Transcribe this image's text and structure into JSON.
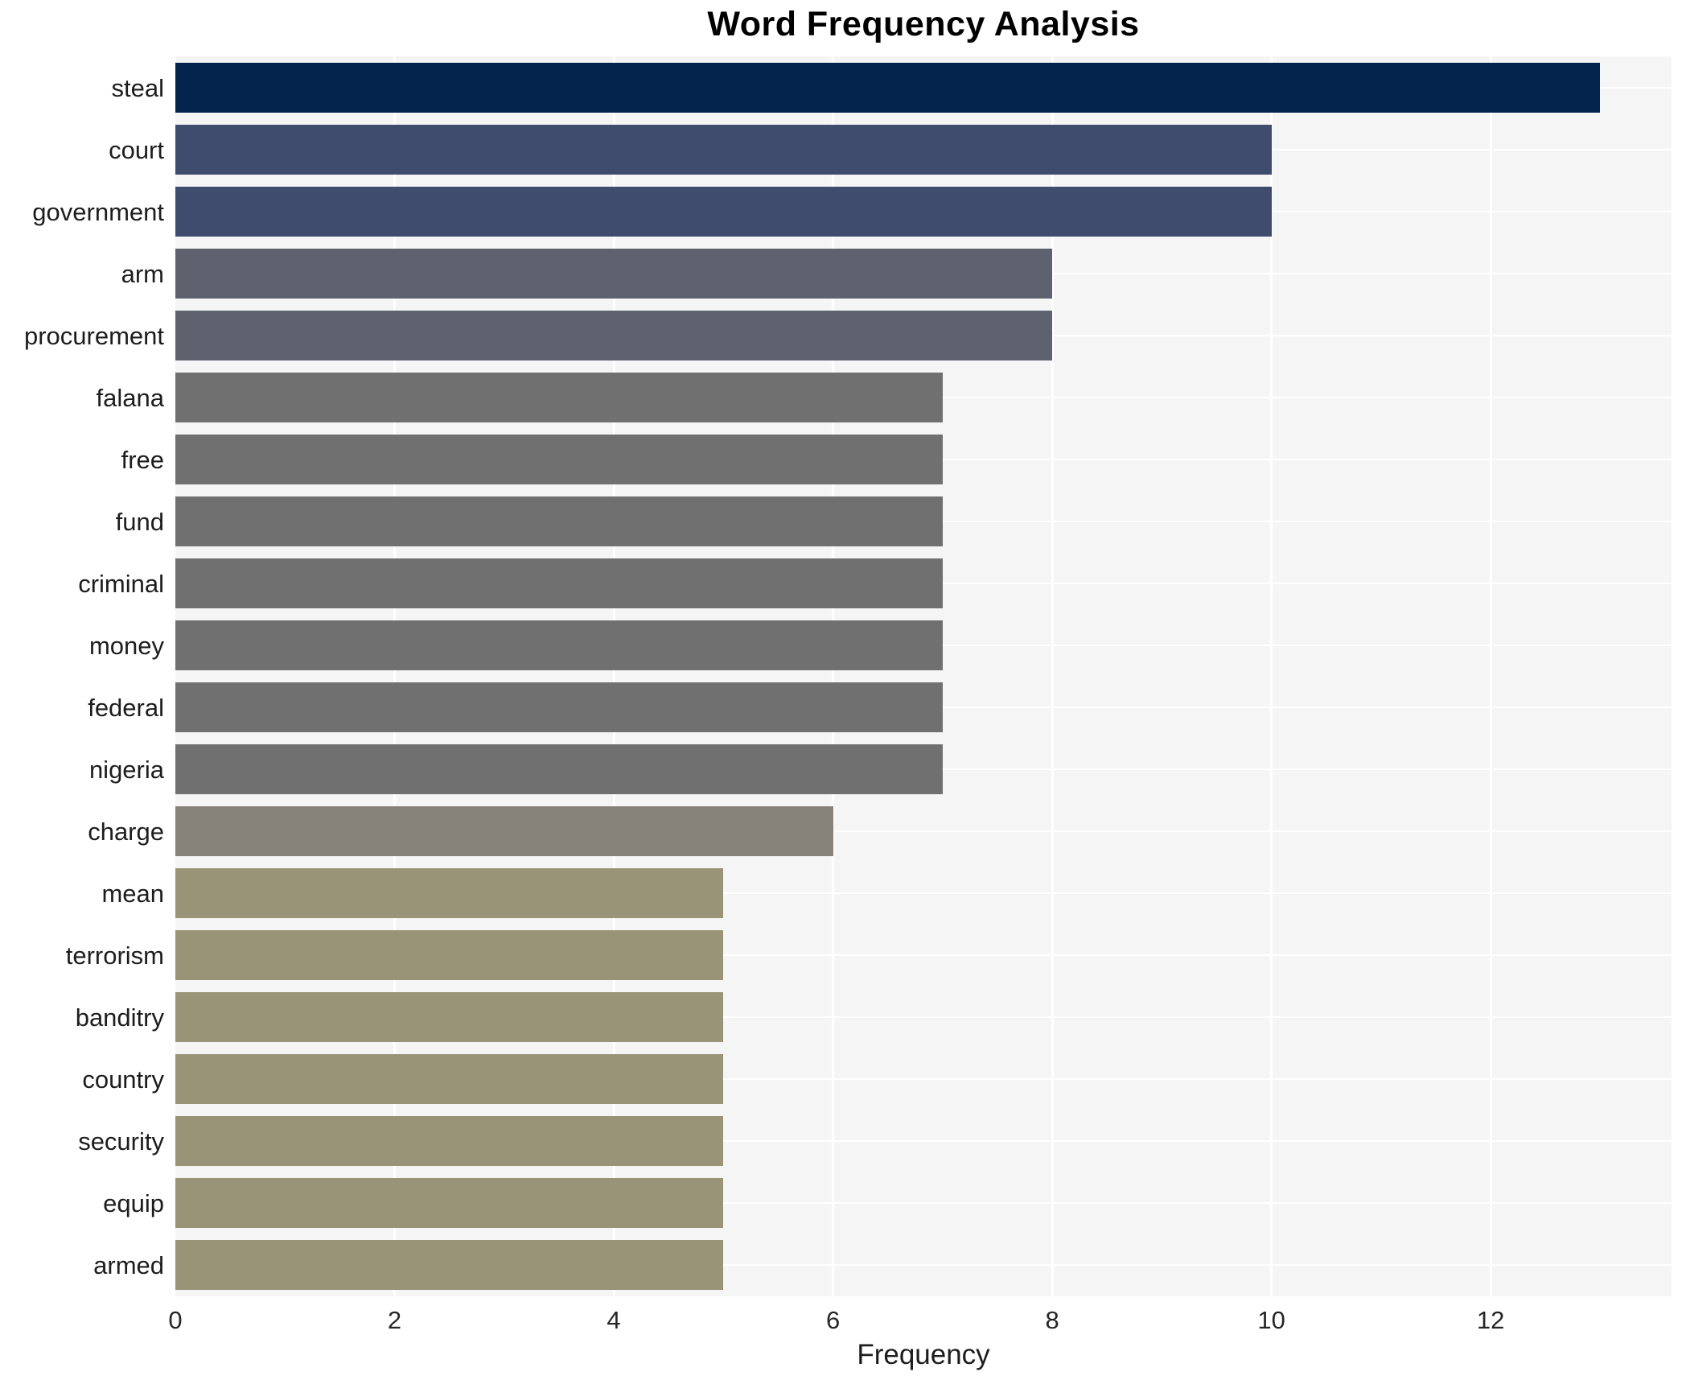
{
  "title": "Word Frequency Analysis",
  "chart_data": {
    "type": "bar",
    "orientation": "horizontal",
    "title": "Word Frequency Analysis",
    "xlabel": "Frequency",
    "ylabel": "",
    "categories": [
      "steal",
      "court",
      "government",
      "arm",
      "procurement",
      "falana",
      "free",
      "fund",
      "criminal",
      "money",
      "federal",
      "nigeria",
      "charge",
      "mean",
      "terrorism",
      "banditry",
      "country",
      "security",
      "equip",
      "armed"
    ],
    "values": [
      13,
      10,
      10,
      8,
      8,
      7,
      7,
      7,
      7,
      7,
      7,
      7,
      6,
      5,
      5,
      5,
      5,
      5,
      5,
      5
    ],
    "bar_colors": [
      "#03234d",
      "#3f4c6e",
      "#3f4c6e",
      "#5e616e",
      "#5e616e",
      "#707070",
      "#707070",
      "#707070",
      "#707070",
      "#707070",
      "#707070",
      "#707070",
      "#86827a",
      "#999377",
      "#999377",
      "#999377",
      "#999377",
      "#999377",
      "#999377",
      "#999377"
    ],
    "xlim": [
      0,
      13.65
    ],
    "xticks": [
      0,
      2,
      4,
      6,
      8,
      10,
      12
    ],
    "legend": "none",
    "grid": "white vertical gridlines at xticks and horizontal lines at category centers",
    "plot_bg_color": "#f5f5f6",
    "grid_color": "#ffffff",
    "text_color": "#262626",
    "title_color": "#000000"
  }
}
